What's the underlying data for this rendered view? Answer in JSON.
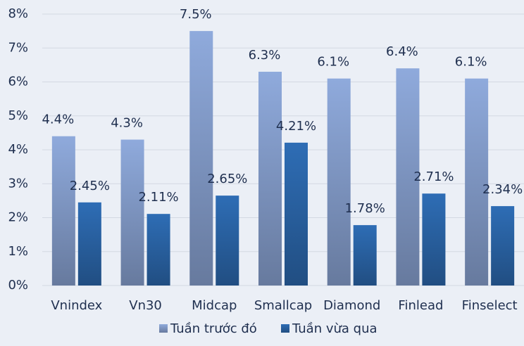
{
  "chart_data": {
    "type": "bar",
    "categories": [
      "Vnindex",
      "Vn30",
      "Midcap",
      "Smallcap",
      "Diamond",
      "Finlead",
      "Finselect"
    ],
    "series": [
      {
        "name": "Tuần trước đó",
        "color": "#8faadc",
        "values": [
          4.4,
          4.3,
          7.5,
          6.3,
          6.1,
          6.4,
          6.1
        ],
        "value_labels": [
          "4.4%",
          "4.3%",
          "7.5%",
          "6.3%",
          "6.1%",
          "6.4%",
          "6.1%"
        ]
      },
      {
        "name": "Tuần vừa qua",
        "color": "#2e6db5",
        "values": [
          2.45,
          2.11,
          2.65,
          4.21,
          1.78,
          2.71,
          2.34
        ],
        "value_labels": [
          "2.45%",
          "2.11%",
          "2.65%",
          "4.21%",
          "1.78%",
          "2.71%",
          "2.34%"
        ]
      }
    ],
    "ylim": [
      0,
      8
    ],
    "yticks": [
      {
        "value": 0,
        "label": "0%"
      },
      {
        "value": 1,
        "label": "1%"
      },
      {
        "value": 2,
        "label": "2%"
      },
      {
        "value": 3,
        "label": "3%"
      },
      {
        "value": 4,
        "label": "4%"
      },
      {
        "value": 5,
        "label": "5%"
      },
      {
        "value": 6,
        "label": "6%"
      },
      {
        "value": 7,
        "label": "7%"
      },
      {
        "value": 8,
        "label": "8%"
      }
    ],
    "grid": true,
    "legend": "bottom"
  }
}
